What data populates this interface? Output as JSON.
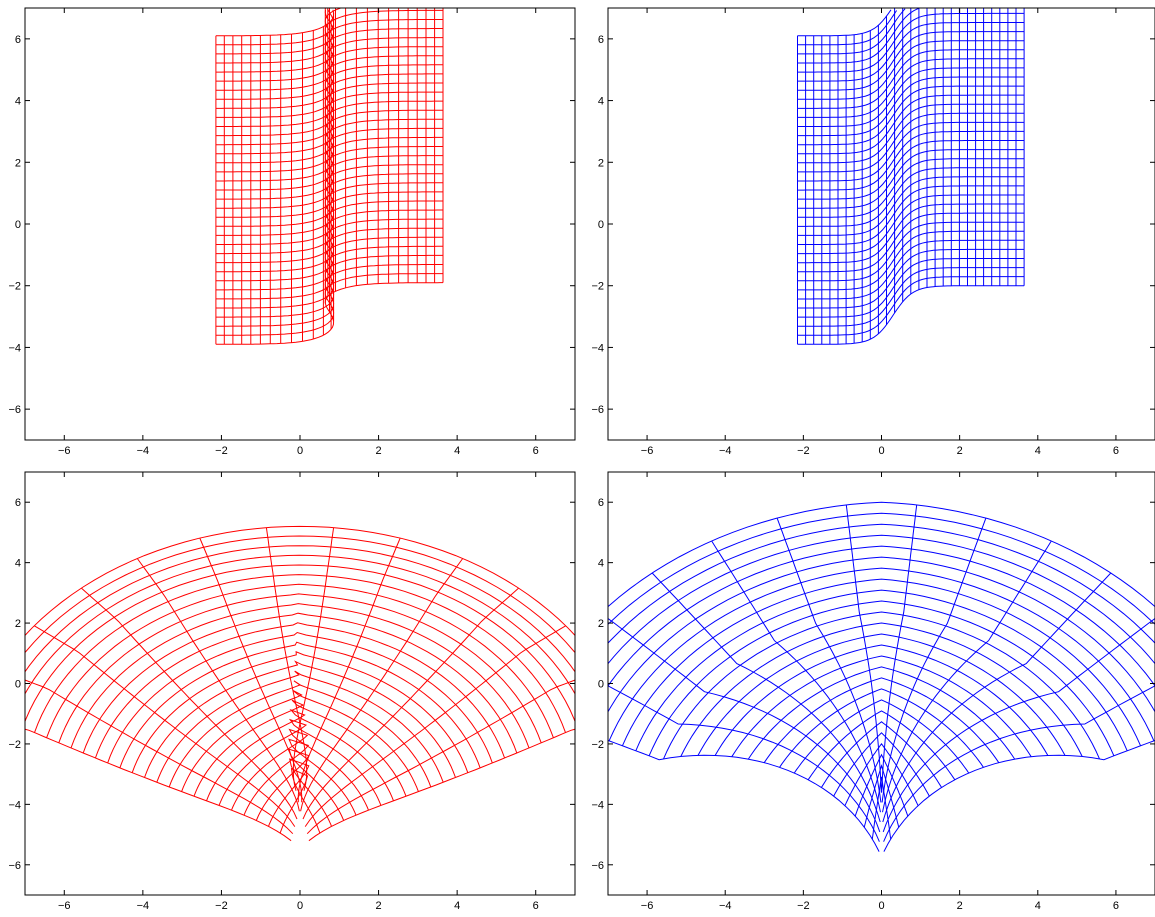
{
  "chart_data": [
    {
      "type": "line",
      "description": "deformed grid: shear with fold",
      "xlim": [
        -7,
        7
      ],
      "ylim": [
        -7,
        7
      ],
      "xticks": [
        -6,
        -4,
        -2,
        0,
        2,
        4,
        6
      ],
      "yticks": [
        -6,
        -4,
        -2,
        0,
        2,
        4,
        6
      ],
      "grid": false,
      "color": "#ff0000",
      "mapping": "shear_fold",
      "params": {
        "u_range": [
          -2.15,
          3.65
        ],
        "v_range": [
          -3.9,
          6.1
        ],
        "step_u": 40,
        "step_v": 40,
        "shift": 2.0,
        "center": 0.75,
        "width": 0.35,
        "fold": 0.6
      }
    },
    {
      "type": "line",
      "description": "deformed grid: smooth shear",
      "xlim": [
        -7,
        7
      ],
      "ylim": [
        -7,
        7
      ],
      "xticks": [
        -6,
        -4,
        -2,
        0,
        2,
        4,
        6
      ],
      "yticks": [
        -6,
        -4,
        -2,
        0,
        2,
        4,
        6
      ],
      "grid": false,
      "color": "#0000ff",
      "mapping": "shear_smooth",
      "params": {
        "u_range": [
          -2.15,
          3.65
        ],
        "v_range": [
          -3.9,
          6.1
        ],
        "step_u": 40,
        "step_v": 40,
        "shift": 1.9,
        "center": 0.3,
        "width": 0.25
      }
    },
    {
      "type": "line",
      "description": "deformed grid: fan with folding core",
      "xlim": [
        -7,
        7
      ],
      "ylim": [
        -7,
        7
      ],
      "xticks": [
        -6,
        -4,
        -2,
        0,
        2,
        4,
        6
      ],
      "yticks": [
        -6,
        -4,
        -2,
        0,
        2,
        4,
        6
      ],
      "grid": false,
      "color": "#ff0000",
      "mapping": "fan_fold",
      "params": {
        "n_radial": 13,
        "n_arc": 26,
        "angle_max_deg": 75,
        "r_inner": 0.0,
        "r_outer": 8.6,
        "apex_y": -3.4
      }
    },
    {
      "type": "line",
      "description": "deformed grid: fan with cusp",
      "xlim": [
        -7,
        7
      ],
      "ylim": [
        -7,
        7
      ],
      "xticks": [
        -6,
        -4,
        -2,
        0,
        2,
        4,
        6
      ],
      "yticks": [
        -6,
        -4,
        -2,
        0,
        2,
        4,
        6
      ],
      "grid": false,
      "color": "#0000ff",
      "mapping": "fan_cusp",
      "params": {
        "n_radial": 13,
        "n_arc": 26,
        "angle_max_deg": 70,
        "r_outer": 9.6,
        "apex_y": -3.6
      }
    }
  ]
}
